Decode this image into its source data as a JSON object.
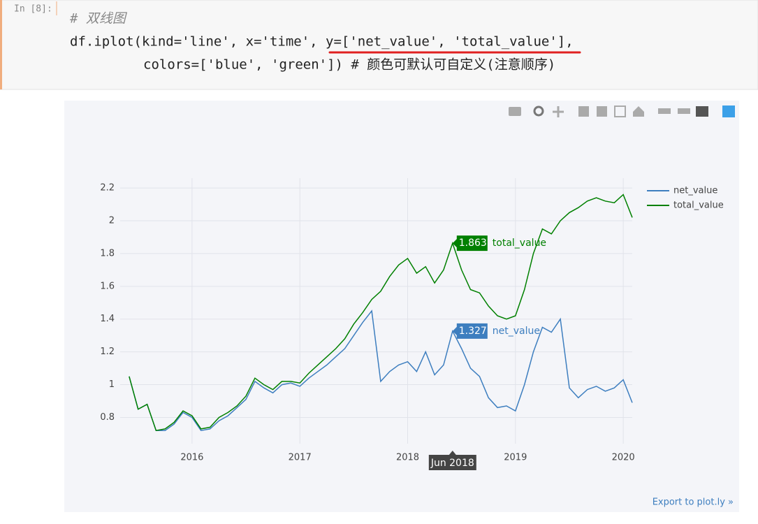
{
  "cell": {
    "prompt": "In [8]:",
    "code": [
      "# 双线图",
      "df.iplot(kind='line', x='time', y=['net_value', 'total_value'],",
      "colors=['blue', 'green']) # 颜色可默认可自定义(注意顺序)"
    ]
  },
  "chart_data": {
    "type": "line",
    "x": [
      "2015-06",
      "2015-07",
      "2015-08",
      "2015-09",
      "2015-10",
      "2015-11",
      "2015-12",
      "2016-01",
      "2016-02",
      "2016-03",
      "2016-04",
      "2016-05",
      "2016-06",
      "2016-07",
      "2016-08",
      "2016-09",
      "2016-10",
      "2016-11",
      "2016-12",
      "2017-01",
      "2017-02",
      "2017-03",
      "2017-04",
      "2017-05",
      "2017-06",
      "2017-07",
      "2017-08",
      "2017-09",
      "2017-10",
      "2017-11",
      "2017-12",
      "2018-01",
      "2018-02",
      "2018-03",
      "2018-04",
      "2018-05",
      "2018-06",
      "2018-07",
      "2018-08",
      "2018-09",
      "2018-10",
      "2018-11",
      "2018-12",
      "2019-01",
      "2019-02",
      "2019-03",
      "2019-04",
      "2019-05",
      "2019-06",
      "2019-07",
      "2019-08",
      "2019-09",
      "2019-10",
      "2019-11",
      "2019-12",
      "2020-01",
      "2020-02"
    ],
    "series": [
      {
        "name": "net_value",
        "color": "#3d7ebf",
        "values": [
          1.05,
          0.85,
          0.88,
          0.72,
          0.72,
          0.76,
          0.83,
          0.8,
          0.72,
          0.73,
          0.78,
          0.81,
          0.86,
          0.91,
          1.02,
          0.98,
          0.95,
          1.0,
          1.01,
          0.99,
          1.04,
          1.08,
          1.12,
          1.17,
          1.22,
          1.3,
          1.38,
          1.45,
          1.02,
          1.08,
          1.12,
          1.14,
          1.08,
          1.2,
          1.06,
          1.12,
          1.327,
          1.22,
          1.1,
          1.05,
          0.92,
          0.86,
          0.87,
          0.84,
          1.0,
          1.2,
          1.35,
          1.32,
          1.4,
          0.98,
          0.92,
          0.97,
          0.99,
          0.96,
          0.98,
          1.03,
          0.89
        ]
      },
      {
        "name": "total_value",
        "color": "#008000",
        "values": [
          1.05,
          0.85,
          0.88,
          0.72,
          0.73,
          0.77,
          0.84,
          0.81,
          0.73,
          0.74,
          0.8,
          0.83,
          0.87,
          0.93,
          1.04,
          1.0,
          0.97,
          1.02,
          1.02,
          1.01,
          1.07,
          1.12,
          1.17,
          1.22,
          1.28,
          1.37,
          1.44,
          1.52,
          1.57,
          1.66,
          1.73,
          1.77,
          1.68,
          1.72,
          1.62,
          1.7,
          1.863,
          1.7,
          1.58,
          1.56,
          1.48,
          1.42,
          1.4,
          1.42,
          1.58,
          1.8,
          1.95,
          1.92,
          2.0,
          2.05,
          2.08,
          2.12,
          2.14,
          2.12,
          2.11,
          2.16,
          2.02
        ]
      }
    ],
    "xlim": [
      "2015-05",
      "2020-02"
    ],
    "xticks": [
      "2016",
      "2017",
      "2018",
      "2019",
      "2020"
    ],
    "ylim": [
      0.64,
      2.26
    ],
    "yticks": [
      0.8,
      1,
      1.2,
      1.4,
      1.6,
      1.8,
      2,
      2.2
    ],
    "grid": true,
    "legend": "top-right",
    "hover_label": "Jun 2018",
    "export_link": "Export to plot.ly »"
  }
}
